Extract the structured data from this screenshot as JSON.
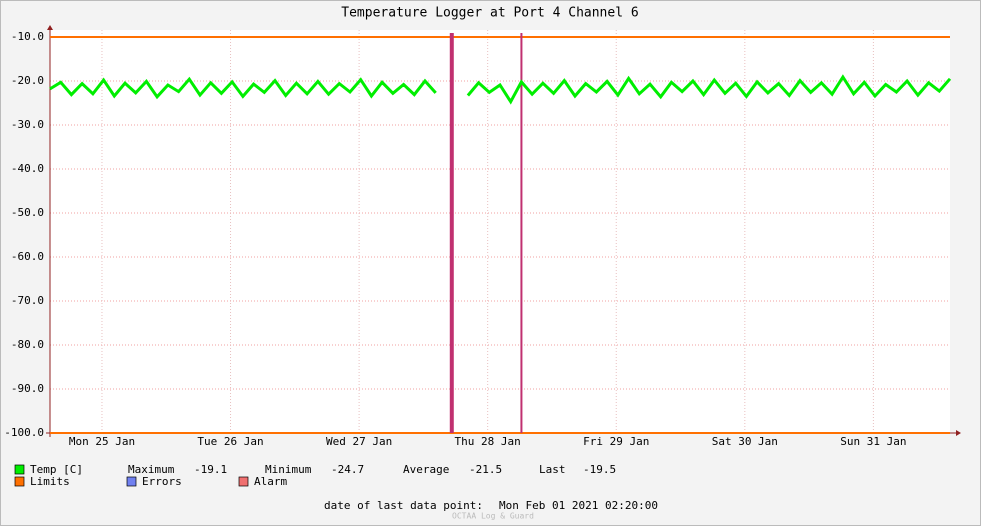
{
  "chart_data": {
    "type": "line",
    "title": "Temperature Logger at Port 4 Channel 6",
    "x": [
      0,
      2,
      4,
      6,
      8,
      10,
      12,
      14,
      16,
      18,
      20,
      22,
      24,
      26,
      28,
      30,
      32,
      34,
      36,
      38,
      40,
      42,
      44,
      46,
      48,
      50,
      52,
      54,
      56,
      58,
      60,
      62,
      64,
      66,
      68,
      70,
      72,
      74,
      76,
      78,
      80,
      82,
      84,
      86,
      88,
      90,
      92,
      94,
      96,
      98,
      100,
      102,
      104,
      106,
      108,
      110,
      112,
      114,
      116,
      118,
      120,
      122,
      124,
      126,
      128,
      130,
      132,
      134,
      136,
      138,
      140,
      142,
      144,
      146,
      148,
      150,
      152,
      154,
      156,
      158,
      160,
      162,
      164,
      166,
      168
    ],
    "series": [
      {
        "name": "Temp [C]",
        "color": "#00ee00",
        "values": [
          -21.8,
          -20.3,
          -23.1,
          -20.6,
          -22.9,
          -19.8,
          -23.4,
          -20.5,
          -22.7,
          -20.1,
          -23.6,
          -20.9,
          -22.4,
          -19.6,
          -23.2,
          -20.4,
          -22.8,
          -20.2,
          -23.5,
          -20.7,
          -22.6,
          -19.9,
          -23.3,
          -20.5,
          -22.9,
          -20.1,
          -23.0,
          -20.6,
          -22.5,
          -19.7,
          -23.4,
          -20.3,
          -22.8,
          -20.8,
          -23.1,
          -20.0,
          -22.7,
          null,
          null,
          -23.3,
          -20.4,
          -22.6,
          -20.9,
          -24.7,
          -20.2,
          -23.0,
          -20.5,
          -22.8,
          -19.9,
          -23.4,
          -20.6,
          -22.5,
          -20.1,
          -23.2,
          -19.4,
          -22.9,
          -20.7,
          -23.6,
          -20.3,
          -22.4,
          -20.0,
          -23.1,
          -19.8,
          -22.8,
          -20.5,
          -23.5,
          -20.2,
          -22.7,
          -20.6,
          -23.3,
          -19.9,
          -22.6,
          -20.4,
          -23.0,
          -19.1,
          -22.9,
          -20.3,
          -23.4,
          -20.8,
          -22.5,
          -20.0,
          -23.2,
          -20.4,
          -22.3,
          -19.5
        ]
      }
    ],
    "limits": {
      "name": "Limits",
      "color": "#ff7000",
      "values": [
        -10,
        -100
      ]
    },
    "errors": {
      "name": "Errors",
      "color": "#7080f0"
    },
    "alarm": {
      "name": "Alarm",
      "color": "#f07070"
    },
    "events": {
      "color": "#c03070",
      "x": [
        75,
        88
      ]
    },
    "xlim": [
      0,
      168
    ],
    "xticks": [
      {
        "value": 9.7,
        "label": "Mon 25 Jan"
      },
      {
        "value": 33.7,
        "label": "Tue 26 Jan"
      },
      {
        "value": 57.7,
        "label": "Wed 27 Jan"
      },
      {
        "value": 81.7,
        "label": "Thu 28 Jan"
      },
      {
        "value": 105.7,
        "label": "Fri 29 Jan"
      },
      {
        "value": 129.7,
        "label": "Sat 30 Jan"
      },
      {
        "value": 153.7,
        "label": "Sun 31 Jan"
      }
    ],
    "ylim": [
      -100,
      -10
    ],
    "yticks": [
      {
        "value": -10,
        "label": "-10.0"
      },
      {
        "value": -20,
        "label": "-20.0"
      },
      {
        "value": -30,
        "label": "-30.0"
      },
      {
        "value": -40,
        "label": "-40.0"
      },
      {
        "value": -50,
        "label": "-50.0"
      },
      {
        "value": -60,
        "label": "-60.0"
      },
      {
        "value": -70,
        "label": "-70.0"
      },
      {
        "value": -80,
        "label": "-80.0"
      },
      {
        "value": -90,
        "label": "-90.0"
      },
      {
        "value": -100,
        "label": "-100.0"
      }
    ],
    "grid": true,
    "stats": [
      {
        "label": "Maximum",
        "value": -19.1
      },
      {
        "label": "Minimum",
        "value": -24.7
      },
      {
        "label": "Average",
        "value": -21.5
      },
      {
        "label": "Last",
        "value": -19.5
      }
    ],
    "footer_label": "date of last data point:",
    "footer_value": "Mon Feb 01 2021 02:20:00",
    "watermark": "OCTAA Log & Guard"
  }
}
